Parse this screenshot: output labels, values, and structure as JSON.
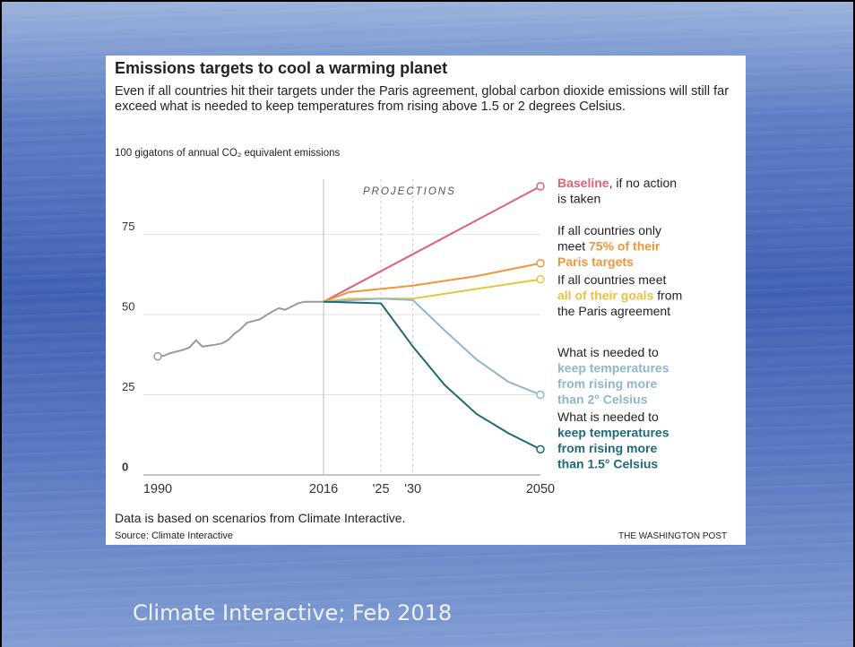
{
  "chart_data": {
    "type": "line",
    "title": "Emissions targets to cool a warming planet",
    "subtitle": "Even if all countries hit their targets under the Paris agreement, global carbon dioxide emissions will still far exceed what is needed to keep temperatures from rising above 1.5 or 2 degrees Celsius.",
    "y_label": "100 gigatons of annual CO₂ equivalent emissions",
    "annotation": "PROJECTIONS",
    "note": "Data is based on scenarios from Climate Interactive.",
    "source": "Source: Climate Interactive",
    "credit": "THE WASHINGTON POST",
    "xlim": [
      1990,
      2050
    ],
    "xticks": [
      1990,
      2016,
      {
        "value": 2025,
        "label": "'25"
      },
      {
        "value": 2030,
        "label": "'30"
      },
      2050
    ],
    "ylim": [
      0,
      95
    ],
    "yticks": [
      0,
      25,
      50,
      75
    ],
    "grid": true,
    "series": [
      {
        "color": "#9a9a9a",
        "marker": "start",
        "x": [
          1990,
          1991,
          1992,
          1993,
          1994,
          1995,
          1996,
          1997,
          1998,
          1999,
          2000,
          2001,
          2002,
          2003,
          2004,
          2005,
          2006,
          2007,
          2008,
          2009,
          2010,
          2011,
          2012,
          2013,
          2014,
          2015,
          2016
        ],
        "values": [
          37,
          37.2,
          38,
          38.5,
          39,
          39.8,
          42,
          40,
          40.3,
          40.6,
          41,
          42,
          44,
          45.5,
          47.5,
          48,
          48.5,
          49.8,
          51,
          52,
          51.5,
          52.5,
          53.5,
          54,
          54,
          54,
          54
        ]
      },
      {
        "color": "#e06377",
        "marker": "end",
        "x": [
          2016,
          2050
        ],
        "values": [
          54,
          90
        ],
        "label": [
          [
            {
              "text": "Baseline",
              "strong": true
            },
            {
              "text": ", if no action"
            }
          ],
          [
            {
              "text": "is taken"
            }
          ]
        ]
      },
      {
        "color": "#f0963a",
        "marker": "end",
        "x": [
          2016,
          2020,
          2030,
          2040,
          2050
        ],
        "values": [
          54,
          57,
          59,
          62,
          66
        ],
        "label": [
          [
            {
              "text": "If all countries only"
            }
          ],
          [
            {
              "text": "meet "
            },
            {
              "text": "75% of their",
              "strong": true
            }
          ],
          [
            {
              "text": "Paris targets",
              "strong": true
            }
          ]
        ]
      },
      {
        "color": "#e6c440",
        "marker": "end",
        "x": [
          2016,
          2020,
          2030,
          2040,
          2050
        ],
        "values": [
          54,
          55,
          55,
          58,
          61
        ],
        "label": [
          [
            {
              "text": "If all countries meet"
            }
          ],
          [
            {
              "text": "all of their goals",
              "strong": true
            },
            {
              "text": " from"
            }
          ],
          [
            {
              "text": "the Paris agreement"
            }
          ]
        ]
      },
      {
        "color": "#8fb6c9",
        "marker": "end",
        "x": [
          2016,
          2025,
          2030,
          2035,
          2040,
          2045,
          2050
        ],
        "values": [
          54,
          55,
          54.5,
          45,
          36,
          29,
          25
        ],
        "label": [
          [
            {
              "text": "What is needed to"
            }
          ],
          [
            {
              "text": "keep temperatures",
              "strong": true
            }
          ],
          [
            {
              "text": "from rising more",
              "strong": true
            }
          ],
          [
            {
              "text": "than 2° Celsius",
              "strong": true
            }
          ]
        ]
      },
      {
        "color": "#1f6a76",
        "marker": "end",
        "x": [
          2016,
          2025,
          2030,
          2035,
          2040,
          2045,
          2050
        ],
        "values": [
          54,
          53.5,
          40,
          28,
          19,
          13,
          8
        ],
        "label": [
          [
            {
              "text": "What is needed to"
            }
          ],
          [
            {
              "text": "keep temperatures",
              "strong": true
            }
          ],
          [
            {
              "text": "from rising more",
              "strong": true
            }
          ],
          [
            {
              "text": "than 1.5° Celsius",
              "strong": true
            }
          ]
        ]
      }
    ]
  },
  "caption": "Climate Interactive; Feb 2018"
}
